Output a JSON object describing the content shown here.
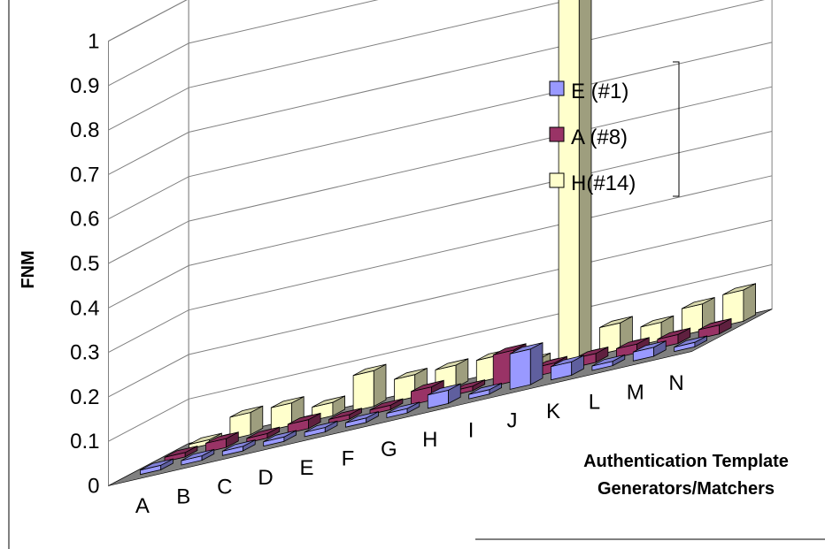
{
  "chart_data": {
    "type": "bar",
    "subtype": "3d-column",
    "categories": [
      "A",
      "B",
      "C",
      "D",
      "E",
      "F",
      "G",
      "H",
      "I",
      "J",
      "K",
      "L",
      "M",
      "N"
    ],
    "series": [
      {
        "name": "E (#1)",
        "color": "#9999ff",
        "values": [
          0.01,
          0.01,
          0.01,
          0.01,
          0.01,
          0.01,
          0.01,
          0.03,
          0.01,
          0.08,
          0.03,
          0.01,
          0.02,
          0.01
        ]
      },
      {
        "name": "A (#8)",
        "color": "#993366",
        "values": [
          0.01,
          0.02,
          0.01,
          0.02,
          0.01,
          0.01,
          0.03,
          0.01,
          0.07,
          0.02,
          0.02,
          0.02,
          0.02,
          0.02
        ]
      },
      {
        "name": "H(#14)",
        "color": "#ffffcc",
        "values": [
          0.01,
          0.05,
          0.05,
          0.03,
          0.08,
          0.05,
          0.05,
          0.05,
          0.02,
          1.0,
          0.06,
          0.04,
          0.06,
          0.07
        ]
      }
    ],
    "ylabel": "FNM",
    "xlabel": "Authentication Template Generators/Matchers",
    "ylim": [
      0,
      1
    ],
    "yticks": [
      "0",
      "0.1",
      "0.2",
      "0.3",
      "0.4",
      "0.5",
      "0.6",
      "0.7",
      "0.8",
      "0.9",
      "1"
    ],
    "grid": true,
    "legend_position": "right"
  }
}
